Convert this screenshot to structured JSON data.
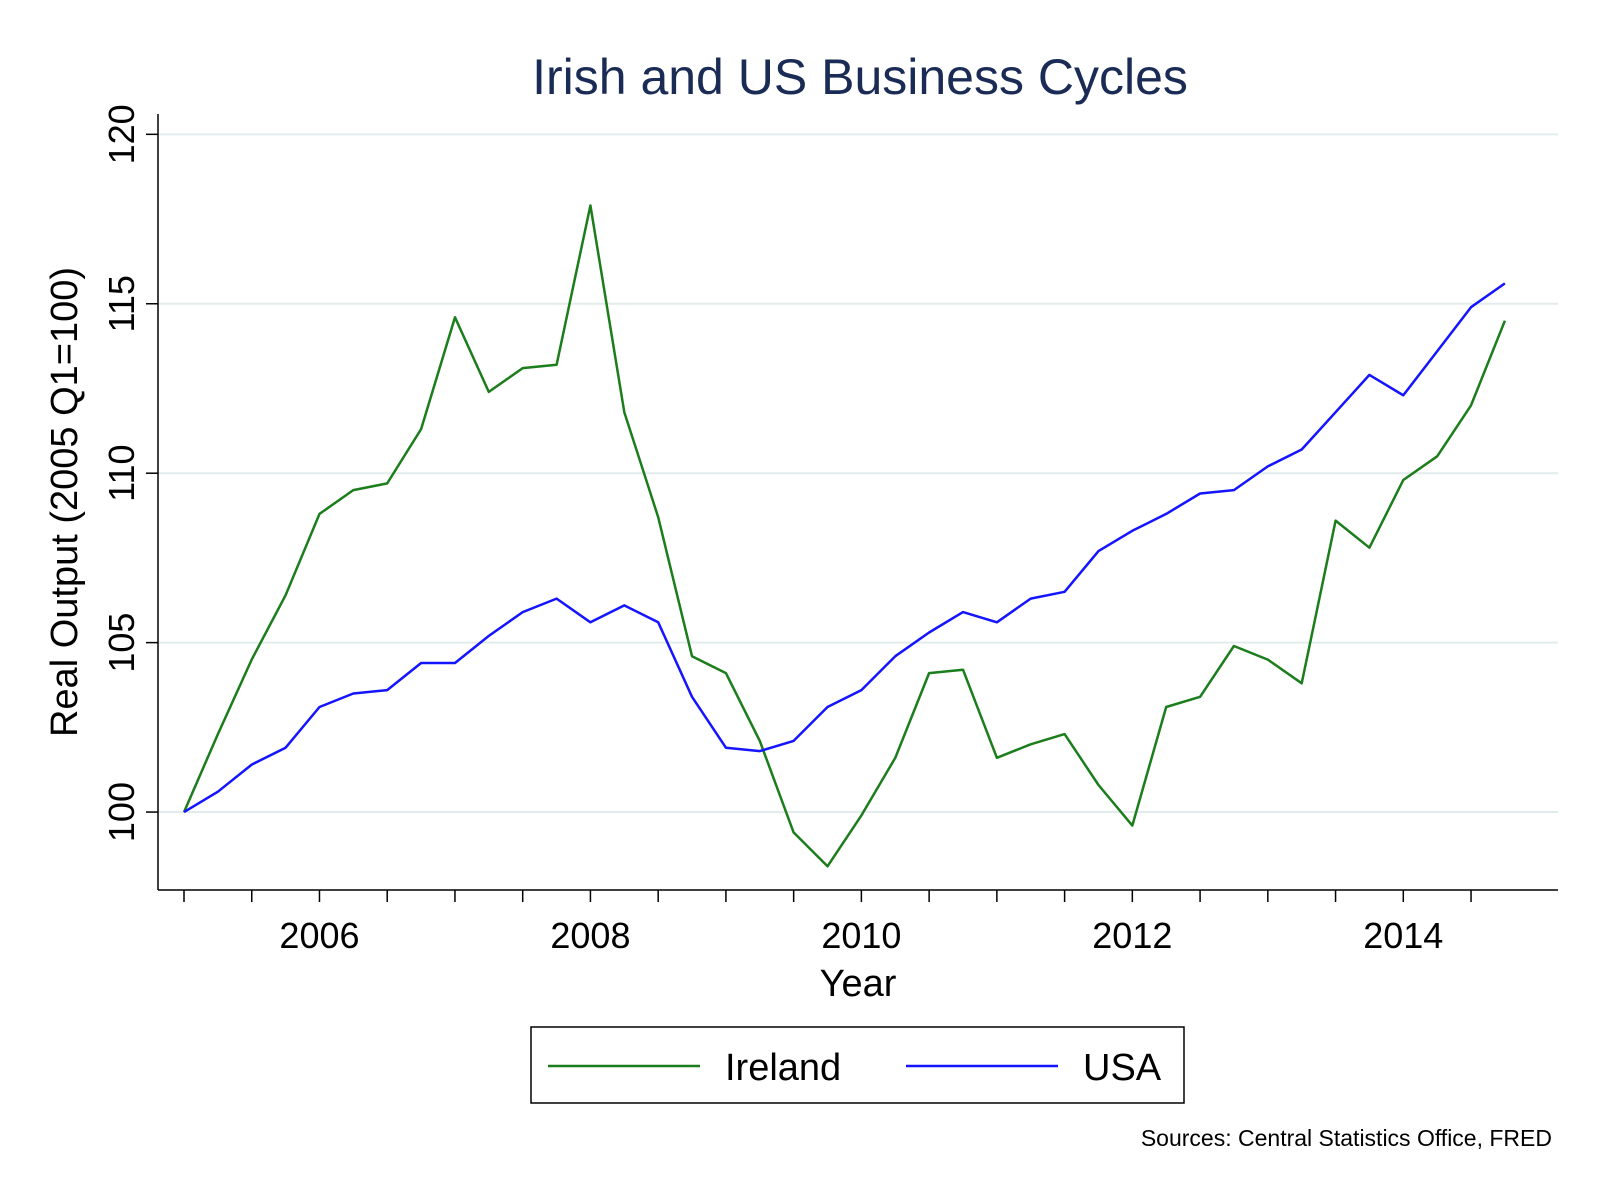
{
  "chart_data": {
    "type": "line",
    "title": "Irish and US Business Cycles",
    "xlabel": "Year",
    "ylabel": "Real Output (2005 Q1=100)",
    "xlim": [
      2005.0,
      2014.95
    ],
    "ylim": [
      97.7,
      120.6
    ],
    "x_ticks": [
      2006,
      2008,
      2010,
      2012,
      2014
    ],
    "y_ticks": [
      100,
      105,
      110,
      115,
      120
    ],
    "grid": true,
    "legend_position": "bottom",
    "source": "Sources: Central Statistics Office, FRED",
    "x": [
      2005.0,
      2005.25,
      2005.5,
      2005.75,
      2006.0,
      2006.25,
      2006.5,
      2006.75,
      2007.0,
      2007.25,
      2007.5,
      2007.75,
      2008.0,
      2008.25,
      2008.5,
      2008.75,
      2009.0,
      2009.25,
      2009.5,
      2009.75,
      2010.0,
      2010.25,
      2010.5,
      2010.75,
      2011.0,
      2011.25,
      2011.5,
      2011.75,
      2012.0,
      2012.25,
      2012.5,
      2012.75,
      2013.0,
      2013.25,
      2013.5,
      2013.75,
      2014.0,
      2014.25,
      2014.5,
      2014.75
    ],
    "series": [
      {
        "name": "Ireland",
        "color": "#1b7d1b",
        "values": [
          100.0,
          102.3,
          104.5,
          106.4,
          108.8,
          109.5,
          109.7,
          111.3,
          114.6,
          112.4,
          113.1,
          113.2,
          117.9,
          111.8,
          108.7,
          104.6,
          104.1,
          102.1,
          99.4,
          98.4,
          99.9,
          101.6,
          104.1,
          104.2,
          101.6,
          102.0,
          102.3,
          100.8,
          99.6,
          103.1,
          103.4,
          104.9,
          104.5,
          103.8,
          108.6,
          107.8,
          109.8,
          110.5,
          112.0,
          114.5
        ]
      },
      {
        "name": "USA",
        "color": "#1414ff",
        "values": [
          100.0,
          100.6,
          101.4,
          101.9,
          103.1,
          103.5,
          103.6,
          104.4,
          104.4,
          105.2,
          105.9,
          106.3,
          105.6,
          106.1,
          105.6,
          103.4,
          101.9,
          101.8,
          102.1,
          103.1,
          103.6,
          104.6,
          105.3,
          105.9,
          105.6,
          106.3,
          106.5,
          107.7,
          108.3,
          108.8,
          109.4,
          109.5,
          110.2,
          110.7,
          111.8,
          112.9,
          112.3,
          113.6,
          114.9,
          115.6
        ]
      }
    ]
  }
}
